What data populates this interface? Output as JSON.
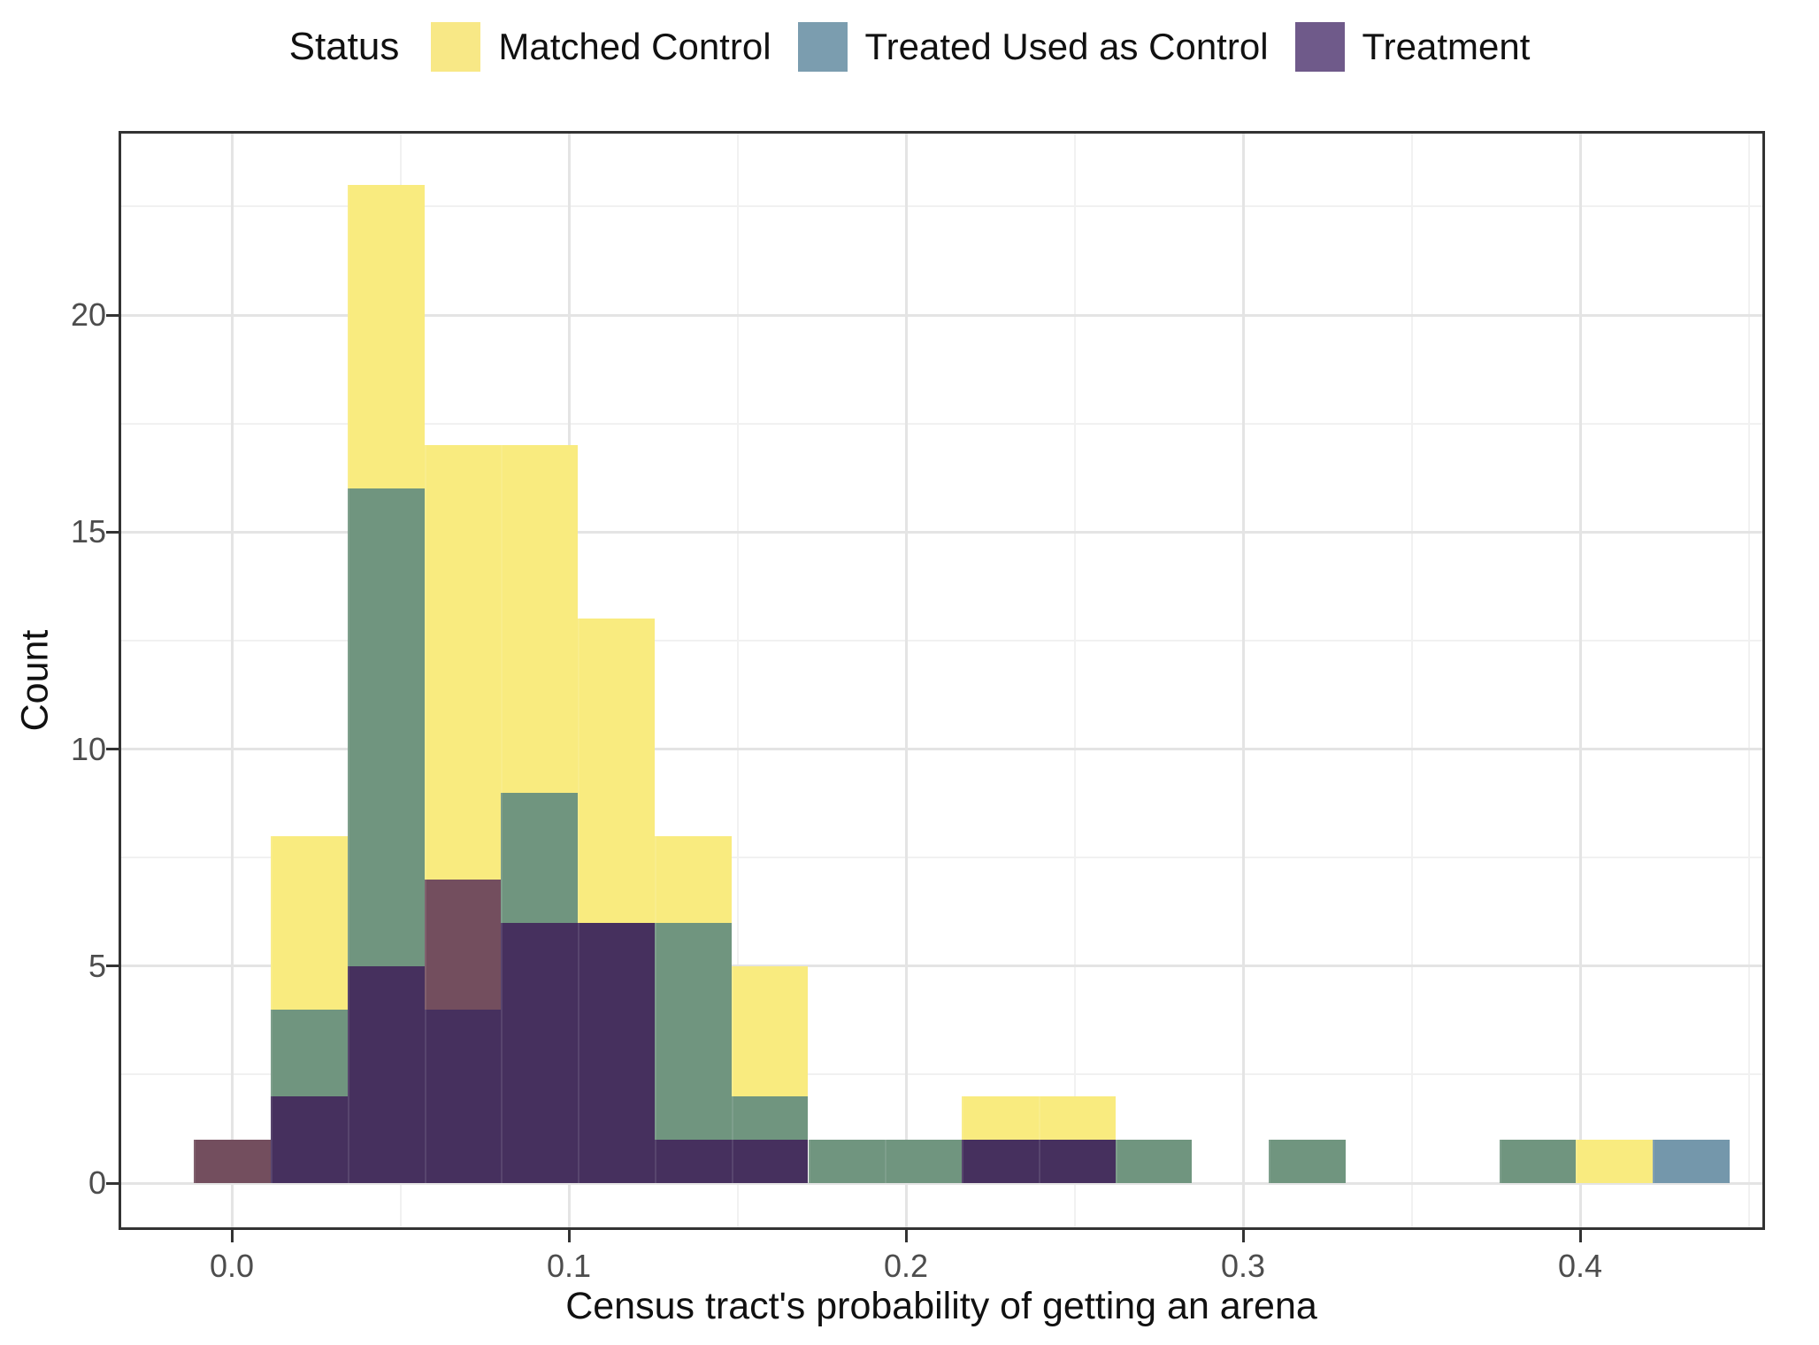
{
  "legend": {
    "title": "Status",
    "entries": [
      {
        "key": "matched_control",
        "label": "Matched Control",
        "color": "#F8E886"
      },
      {
        "key": "treated_used_as_control",
        "label": "Treated Used as Control",
        "color": "#7B9DAF"
      },
      {
        "key": "treatment",
        "label": "Treatment",
        "color": "#6F5A8A"
      }
    ]
  },
  "axes": {
    "x_title": "Census tract's probability of getting an arena",
    "y_title": "Count",
    "x_tick_labels": [
      "0.0",
      "0.1",
      "0.2",
      "0.3",
      "0.4"
    ],
    "y_tick_labels": [
      "0",
      "5",
      "10",
      "15",
      "20"
    ]
  },
  "chart_data": {
    "type": "histogram",
    "subtype": "overlaid-semi-transparent-histogram",
    "title": "",
    "xlabel": "Census tract's probability of getting an arena",
    "ylabel": "Count",
    "legend_position": "top",
    "grid": "on",
    "x_ticks": [
      0.0,
      0.1,
      0.2,
      0.3,
      0.4
    ],
    "x_minor_ticks": [
      0.05,
      0.15,
      0.25,
      0.35,
      0.45
    ],
    "y_ticks": [
      0,
      5,
      10,
      15,
      20
    ],
    "y_minor_ticks": [
      2.5,
      7.5,
      12.5,
      17.5,
      22.5
    ],
    "xlim": [
      -0.0336,
      0.4548
    ],
    "ylim": [
      0,
      24.2
    ],
    "bin_width": 0.0228,
    "band_colors": {
      "mc": "#F9EB7F",
      "tc": "#7497AB",
      "mc_tc": "#70957F",
      "mc_tr": "#734E5E",
      "all": "#46305E"
    },
    "band_meaning": {
      "mc": "Matched Control only (yellow)",
      "tc": "Treated Used as Control only (steel blue)",
      "mc_tc": "Matched Control over Treated-as-Control overlap (sage green)",
      "mc_tr": "Matched Control over Treatment overlap (maroon)",
      "all": "All groups overlapping (dark purple)"
    },
    "bins": [
      {
        "x0": -0.0113,
        "x1": 0.0115,
        "segments": [
          {
            "band": "mc_tr",
            "from": 0,
            "to": 1
          }
        ]
      },
      {
        "x0": 0.0115,
        "x1": 0.0343,
        "segments": [
          {
            "band": "all",
            "from": 0,
            "to": 2
          },
          {
            "band": "mc_tc",
            "from": 2,
            "to": 4
          },
          {
            "band": "mc",
            "from": 4,
            "to": 8
          }
        ]
      },
      {
        "x0": 0.0343,
        "x1": 0.0571,
        "segments": [
          {
            "band": "all",
            "from": 0,
            "to": 5
          },
          {
            "band": "mc_tc",
            "from": 5,
            "to": 16
          },
          {
            "band": "mc",
            "from": 16,
            "to": 23
          }
        ]
      },
      {
        "x0": 0.0571,
        "x1": 0.0798,
        "segments": [
          {
            "band": "all",
            "from": 0,
            "to": 4
          },
          {
            "band": "mc_tr",
            "from": 4,
            "to": 7
          },
          {
            "band": "mc",
            "from": 7,
            "to": 17
          }
        ]
      },
      {
        "x0": 0.0798,
        "x1": 0.1026,
        "segments": [
          {
            "band": "all",
            "from": 0,
            "to": 6
          },
          {
            "band": "mc_tc",
            "from": 6,
            "to": 9
          },
          {
            "band": "mc",
            "from": 9,
            "to": 17
          }
        ]
      },
      {
        "x0": 0.1026,
        "x1": 0.1254,
        "segments": [
          {
            "band": "all",
            "from": 0,
            "to": 6
          },
          {
            "band": "mc",
            "from": 6,
            "to": 13
          }
        ]
      },
      {
        "x0": 0.1254,
        "x1": 0.1482,
        "segments": [
          {
            "band": "all",
            "from": 0,
            "to": 1
          },
          {
            "band": "mc_tc",
            "from": 1,
            "to": 6
          },
          {
            "band": "mc",
            "from": 6,
            "to": 8
          }
        ]
      },
      {
        "x0": 0.1482,
        "x1": 0.171,
        "segments": [
          {
            "band": "all",
            "from": 0,
            "to": 1
          },
          {
            "band": "mc_tc",
            "from": 1,
            "to": 2
          },
          {
            "band": "mc",
            "from": 2,
            "to": 5
          }
        ]
      },
      {
        "x0": 0.171,
        "x1": 0.1937,
        "segments": [
          {
            "band": "mc_tc",
            "from": 0,
            "to": 1
          }
        ]
      },
      {
        "x0": 0.1937,
        "x1": 0.2165,
        "segments": [
          {
            "band": "mc_tc",
            "from": 0,
            "to": 1
          }
        ]
      },
      {
        "x0": 0.2165,
        "x1": 0.2393,
        "segments": [
          {
            "band": "all",
            "from": 0,
            "to": 1
          },
          {
            "band": "mc",
            "from": 1,
            "to": 2
          }
        ]
      },
      {
        "x0": 0.2393,
        "x1": 0.2621,
        "segments": [
          {
            "band": "all",
            "from": 0,
            "to": 1
          },
          {
            "band": "mc",
            "from": 1,
            "to": 2
          }
        ]
      },
      {
        "x0": 0.2621,
        "x1": 0.2849,
        "segments": [
          {
            "band": "mc_tc",
            "from": 0,
            "to": 1
          }
        ]
      },
      {
        "x0": 0.2849,
        "x1": 0.3076,
        "segments": []
      },
      {
        "x0": 0.3076,
        "x1": 0.3304,
        "segments": [
          {
            "band": "mc_tc",
            "from": 0,
            "to": 1
          }
        ]
      },
      {
        "x0": 0.3304,
        "x1": 0.3532,
        "segments": []
      },
      {
        "x0": 0.3532,
        "x1": 0.376,
        "segments": []
      },
      {
        "x0": 0.376,
        "x1": 0.3988,
        "segments": [
          {
            "band": "mc_tc",
            "from": 0,
            "to": 1
          }
        ]
      },
      {
        "x0": 0.3988,
        "x1": 0.4215,
        "segments": [
          {
            "band": "mc",
            "from": 0,
            "to": 1
          }
        ]
      },
      {
        "x0": 0.4215,
        "x1": 0.4443,
        "segments": [
          {
            "band": "tc",
            "from": 0,
            "to": 1
          }
        ]
      }
    ],
    "series": [
      {
        "name": "Matched Control",
        "values": [
          1,
          8,
          23,
          17,
          17,
          13,
          8,
          5,
          1,
          1,
          2,
          2,
          1,
          0,
          1,
          0,
          0,
          1,
          1,
          0
        ]
      },
      {
        "name": "Treated Used as Control",
        "values": [
          0,
          4,
          16,
          4,
          9,
          6,
          6,
          2,
          1,
          1,
          1,
          1,
          1,
          0,
          1,
          0,
          0,
          1,
          0,
          1
        ]
      },
      {
        "name": "Treatment",
        "values": [
          1,
          2,
          5,
          7,
          6,
          6,
          1,
          1,
          0,
          0,
          1,
          1,
          0,
          0,
          0,
          0,
          0,
          0,
          0,
          0
        ]
      }
    ],
    "series_note": "Per-bin counts estimated by decomposing the alpha-blended overlay bands.",
    "style": {
      "grid_major_color": "#E4E4E4",
      "grid_minor_color": "#F1F1F1",
      "panel_border_color": "#333333",
      "tick_color": "#333333",
      "tick_label_color": "#4d4d4d",
      "title_color": "#111111",
      "background": "#ffffff"
    }
  }
}
